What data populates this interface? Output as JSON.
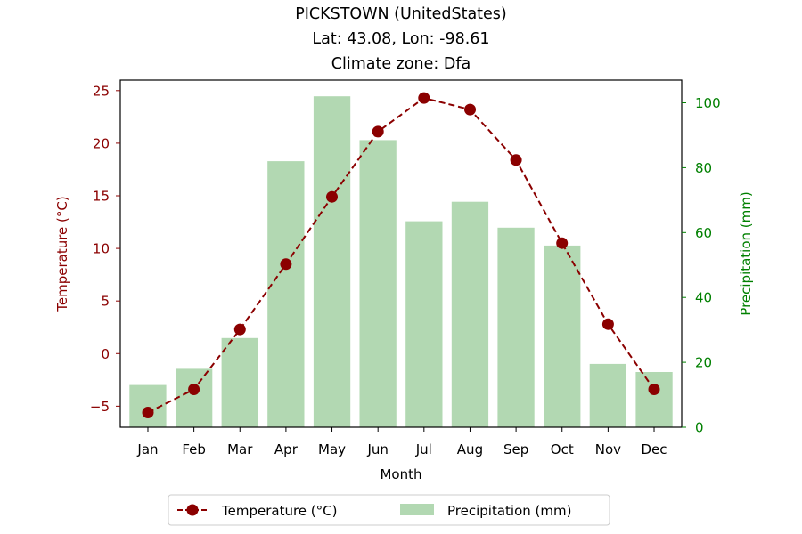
{
  "chart_data": {
    "type": "bar+line",
    "title_lines": [
      "PICKSTOWN (UnitedStates)",
      "Lat: 43.08, Lon: -98.61",
      "Climate zone: Dfa"
    ],
    "xlabel": "Month",
    "ylabel_left": "Temperature (°C)",
    "ylabel_right": "Precipitation (mm)",
    "categories": [
      "Jan",
      "Feb",
      "Mar",
      "Apr",
      "May",
      "Jun",
      "Jul",
      "Aug",
      "Sep",
      "Oct",
      "Nov",
      "Dec"
    ],
    "temperature": {
      "name": "Temperature (°C)",
      "values": [
        -5.6,
        -3.4,
        2.3,
        8.5,
        14.9,
        21.1,
        24.3,
        23.2,
        18.4,
        10.5,
        2.8,
        -3.4
      ],
      "color": "#8b0000",
      "axis": "left"
    },
    "precipitation": {
      "name": "Precipitation (mm)",
      "values": [
        13,
        18,
        27.5,
        82,
        102,
        88.5,
        63.5,
        69.5,
        61.5,
        56,
        19.5,
        17
      ],
      "color": "#b2d8b2",
      "axis": "right"
    },
    "ylim_left": [
      -7.0,
      26.0
    ],
    "ylim_right": [
      0,
      107
    ],
    "yticks_left": [
      -5,
      0,
      5,
      10,
      15,
      20,
      25
    ],
    "yticks_right": [
      0,
      20,
      40,
      60,
      80,
      100
    ],
    "left_axis_color": "#8b0000",
    "right_axis_color": "#008000",
    "legend": {
      "placement": "bottom-center"
    },
    "grid": false
  }
}
